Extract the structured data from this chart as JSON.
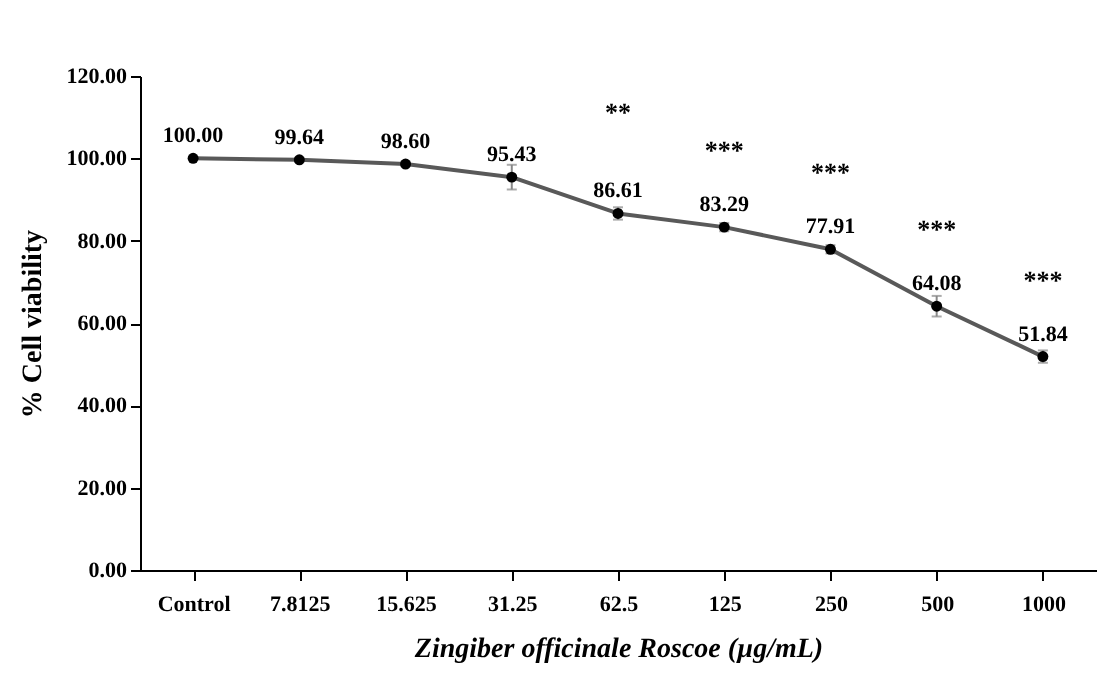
{
  "chart_data": {
    "type": "line",
    "xlabel": "Zingiber officinale Roscoe (µg/mL)",
    "ylabel": "% Cell viability",
    "categories": [
      "Control",
      "7.8125",
      "15.625",
      "31.25",
      "62.5",
      "125",
      "250",
      "500",
      "1000"
    ],
    "series": [
      {
        "color": "#595959",
        "values": [
          100.0,
          99.64,
          98.6,
          95.43,
          86.61,
          83.29,
          77.91,
          64.08,
          51.84
        ],
        "value_labels": [
          "100.00",
          "99.64",
          "98.60",
          "95.43",
          "86.61",
          "83.29",
          "77.91",
          "64.08",
          "51.84"
        ],
        "errors": [
          null,
          0.5,
          0.5,
          3,
          1.5,
          1,
          1,
          2.5,
          1.5
        ]
      }
    ],
    "ylim": [
      0,
      120
    ],
    "yticks": [
      {
        "value": 0,
        "label": "0.00"
      },
      {
        "value": 20,
        "label": "20.00"
      },
      {
        "value": 40,
        "label": "40.00"
      },
      {
        "value": 60,
        "label": "60.00"
      },
      {
        "value": 80,
        "label": "80.00"
      },
      {
        "value": 100,
        "label": "100.00"
      },
      {
        "value": 120,
        "label": "120.00"
      }
    ],
    "marker": "circle",
    "line_style": "solid",
    "grid": false,
    "annotations": [
      "**",
      "***",
      "***",
      "***",
      "***"
    ]
  }
}
